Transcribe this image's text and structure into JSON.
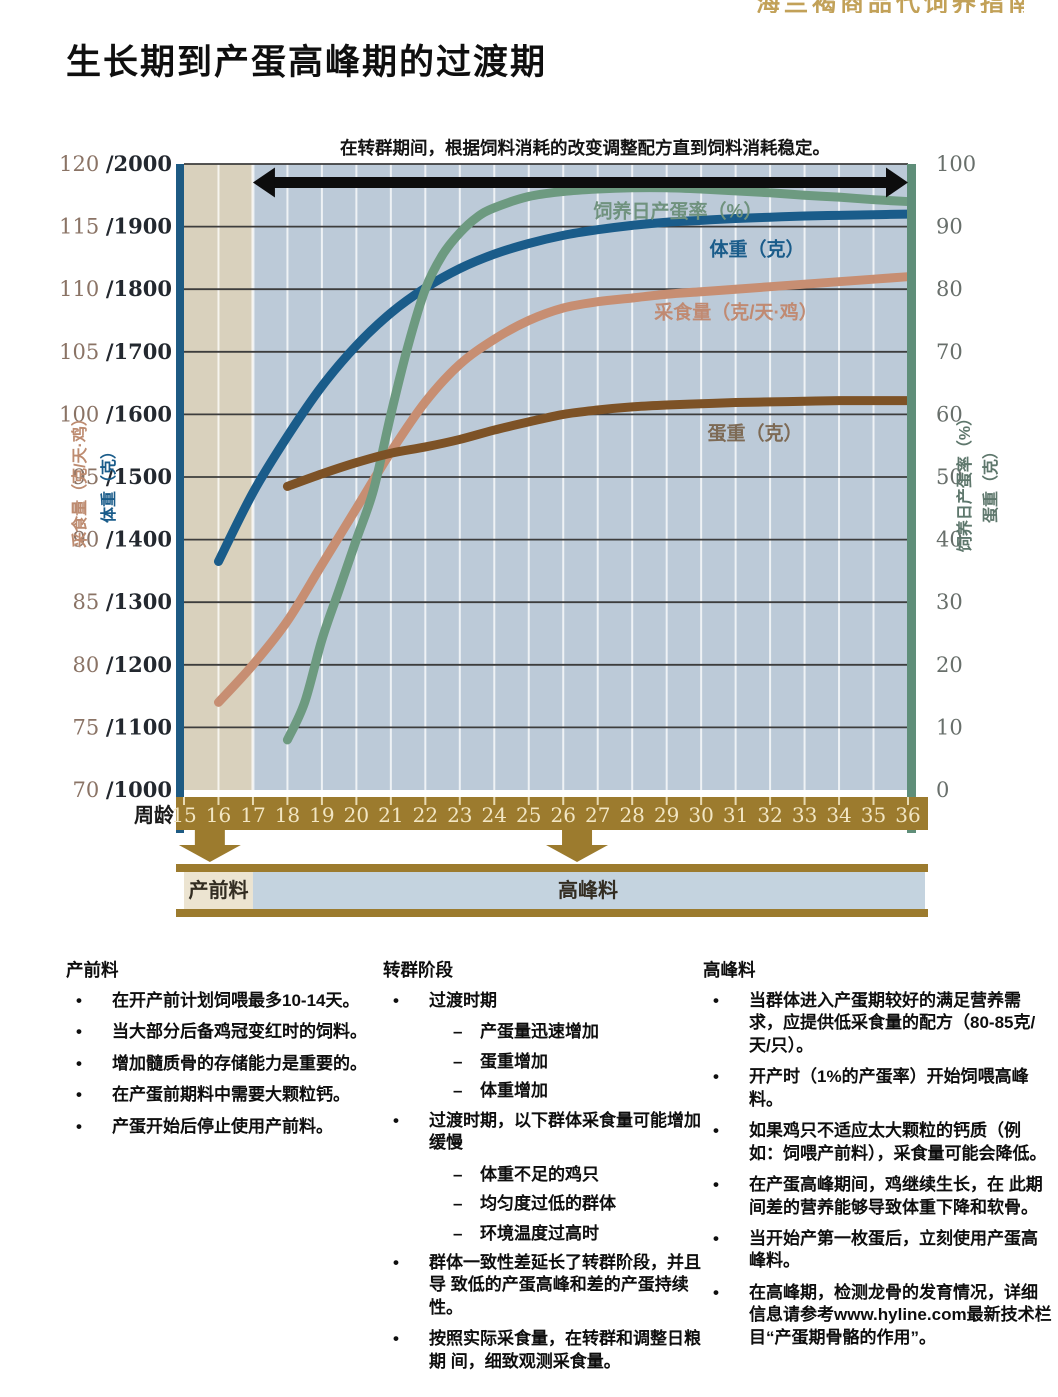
{
  "page": {
    "title": "生长期到产蛋高峰期的过渡期",
    "partial_header": "海兰褐商品代饲养指南",
    "chart_annotation": "在转群期间，根据饲料消耗的改变调整配方直到饲料消耗稳定。"
  },
  "colors": {
    "gold": "#9c7b2e",
    "gold_text": "#f2e6c3",
    "plot_prelay_bg": "#d9d1bd",
    "plot_main_bg": "#bccad8",
    "bar_prelay_bg": "#ece4d1",
    "bar_peak_bg": "#c4d3df",
    "bar_label": "#332d22",
    "left_spine": "#1d5a83",
    "right_spine": "#5f8e79",
    "gridline": "#3d3d3d",
    "week_gridline": "rgba(255,255,255,0.75)",
    "transition_arrow": "#0d0d0d",
    "week_axis_label": "#1a1a1a"
  },
  "chart_data": {
    "type": "line",
    "x_axis": {
      "label": "周龄",
      "weeks": [
        "15",
        "16",
        "17",
        "18",
        "19",
        "20",
        "21",
        "22",
        "23",
        "24",
        "25",
        "26",
        "27",
        "28",
        "29",
        "30",
        "31",
        "32",
        "33",
        "34",
        "35",
        "36"
      ],
      "range": [
        15,
        36
      ]
    },
    "left_axis": {
      "titles": [
        {
          "text": "采食量（克/天·鸡）",
          "color": "#bd8b70"
        },
        {
          "text": "体重（克）",
          "color": "#1a5c8a"
        }
      ],
      "tick_color_feed": "#8a7365",
      "tick_color_weight": "#23282f",
      "ticks": [
        {
          "feed": "120",
          "weight": "/2000"
        },
        {
          "feed": "115",
          "weight": "/1900"
        },
        {
          "feed": "110",
          "weight": "/1800"
        },
        {
          "feed": "105",
          "weight": "/1700"
        },
        {
          "feed": "100",
          "weight": "/1600"
        },
        {
          "feed": "95",
          "weight": "/1500"
        },
        {
          "feed": "90",
          "weight": "/1400"
        },
        {
          "feed": "85",
          "weight": "/1300"
        },
        {
          "feed": "80",
          "weight": "/1200"
        },
        {
          "feed": "75",
          "weight": "/1100"
        },
        {
          "feed": "70",
          "weight": "/1000"
        }
      ],
      "feed_range": [
        70,
        120
      ],
      "weight_range": [
        1000,
        2000
      ]
    },
    "right_axis": {
      "titles": [
        {
          "text": "饲养日产蛋率（%）",
          "color": "#5e776c"
        },
        {
          "text": "蛋重（克）",
          "color": "#5e776c"
        }
      ],
      "tick_color": "#686f6b",
      "ticks": [
        "100",
        "90",
        "80",
        "70",
        "60",
        "50",
        "40",
        "30",
        "20",
        "10",
        "0"
      ],
      "range": [
        0,
        100
      ]
    },
    "series": [
      {
        "name": "采食量（克/天·鸡）",
        "axis": "feed",
        "color": "#c78e72",
        "label_color": "#c08a72",
        "points": [
          [
            16,
            77
          ],
          [
            17,
            80
          ],
          [
            18,
            83.5
          ],
          [
            19,
            88
          ],
          [
            20,
            92.5
          ],
          [
            21,
            97
          ],
          [
            22,
            101
          ],
          [
            23,
            104
          ],
          [
            24,
            106
          ],
          [
            25,
            107.5
          ],
          [
            26,
            108.5
          ],
          [
            27,
            109
          ],
          [
            28,
            109.3
          ],
          [
            29,
            109.6
          ],
          [
            30,
            109.8
          ],
          [
            31,
            110
          ],
          [
            32,
            110.2
          ],
          [
            33,
            110.4
          ],
          [
            34,
            110.6
          ],
          [
            35,
            110.8
          ],
          [
            36,
            111
          ]
        ]
      },
      {
        "name": "体重（克）",
        "axis": "weight",
        "color": "#1a5c8a",
        "label_color": "#1a5c8a",
        "points": [
          [
            16,
            1365
          ],
          [
            17,
            1475
          ],
          [
            18,
            1565
          ],
          [
            19,
            1645
          ],
          [
            20,
            1710
          ],
          [
            21,
            1762
          ],
          [
            22,
            1802
          ],
          [
            23,
            1833
          ],
          [
            24,
            1856
          ],
          [
            25,
            1873
          ],
          [
            26,
            1886
          ],
          [
            27,
            1895
          ],
          [
            28,
            1902
          ],
          [
            29,
            1907
          ],
          [
            30,
            1910
          ],
          [
            31,
            1913
          ],
          [
            32,
            1915
          ],
          [
            33,
            1917
          ],
          [
            34,
            1918
          ],
          [
            35,
            1919
          ],
          [
            36,
            1920
          ]
        ]
      },
      {
        "name": "饲养日产蛋率（%）",
        "axis": "percent",
        "color": "#6d9a80",
        "label_color": "#6f927e",
        "points": [
          [
            18,
            8
          ],
          [
            18.5,
            14
          ],
          [
            19,
            24
          ],
          [
            19.5,
            32
          ],
          [
            20,
            40
          ],
          [
            20.5,
            48
          ],
          [
            21,
            60
          ],
          [
            21.5,
            71
          ],
          [
            22,
            80
          ],
          [
            22.5,
            85.5
          ],
          [
            23,
            89
          ],
          [
            23.5,
            91.5
          ],
          [
            24,
            93
          ],
          [
            25,
            94.8
          ],
          [
            26,
            95.6
          ],
          [
            27,
            96
          ],
          [
            28,
            96.2
          ],
          [
            29,
            96.2
          ],
          [
            30,
            96
          ],
          [
            31,
            95.7
          ],
          [
            32,
            95.4
          ],
          [
            33,
            95
          ],
          [
            34,
            94.7
          ],
          [
            35,
            94.3
          ],
          [
            36,
            94
          ]
        ]
      },
      {
        "name": "蛋重（克）",
        "axis": "grams",
        "color": "#7d5226",
        "label_color": "#7d6a55",
        "points": [
          [
            18,
            48.5
          ],
          [
            19,
            50.5
          ],
          [
            20,
            52.3
          ],
          [
            21,
            53.8
          ],
          [
            22,
            54.8
          ],
          [
            23,
            56
          ],
          [
            24,
            57.5
          ],
          [
            25,
            58.8
          ],
          [
            26,
            60
          ],
          [
            27,
            60.7
          ],
          [
            28,
            61.2
          ],
          [
            29,
            61.5
          ],
          [
            30,
            61.7
          ],
          [
            31,
            61.9
          ],
          [
            32,
            62
          ],
          [
            33,
            62.1
          ],
          [
            34,
            62.2
          ],
          [
            35,
            62.2
          ],
          [
            36,
            62.2
          ]
        ]
      }
    ],
    "transition_arrow": {
      "from_week": 17,
      "to_week": 36
    },
    "feed_change_arrow_weeks": [
      15.75,
      26.4
    ],
    "feed_program": [
      {
        "label": "产前料",
        "from_week": 15,
        "to_week": 17
      },
      {
        "label": "高峰料",
        "from_week": 17,
        "to_week": 36
      }
    ]
  },
  "notes_columns": [
    {
      "heading": "产前料",
      "items": [
        {
          "text": "在开产前计划饲喂最多10-14天。"
        },
        {
          "text": "当大部分后备鸡冠变红时的饲料。"
        },
        {
          "text": "增加髓质骨的存储能力是重要的。"
        },
        {
          "text": "在产蛋前期料中需要大颗粒钙。"
        },
        {
          "text": "产蛋开始后停止使用产前料。"
        }
      ]
    },
    {
      "heading": "转群阶段",
      "items": [
        {
          "text": "过渡时期",
          "subs": [
            "产蛋量迅速增加",
            "蛋重增加",
            "体重增加"
          ]
        },
        {
          "text": "过渡时期，以下群体采食量可能增加 缓慢",
          "subs": [
            "体重不足的鸡只",
            "均匀度过低的群体",
            "环境温度过高时"
          ]
        },
        {
          "text": "群体一致性差延长了转群阶段，并且导 致低的产蛋高峰和差的产蛋持续性。"
        },
        {
          "text": "按照实际采食量，在转群和调整日粮期 间，细致观测采食量。"
        }
      ]
    },
    {
      "heading": "高峰料",
      "items": [
        {
          "text": "当群体进入产蛋期较好的满足营养需求，应提供低采食量的配方（80-85克/天/只）。"
        },
        {
          "text": "开产时（1%的产蛋率）开始饲喂高峰料。"
        },
        {
          "text": "如果鸡只不适应太大颗粒的钙质（例如：饲喂产前料），采食量可能会降低。"
        },
        {
          "text": "在产蛋高峰期间，鸡继续生长，在 此期间差的营养能够导致体重下降和软骨。"
        },
        {
          "text": "当开始产第一枚蛋后，立刻使用产蛋高峰料。"
        },
        {
          "text": "在高峰期，检测龙骨的发育情况，详细信息请参考www.hyline.com最新技术栏目“产蛋期骨骼的作用”。"
        }
      ]
    }
  ]
}
